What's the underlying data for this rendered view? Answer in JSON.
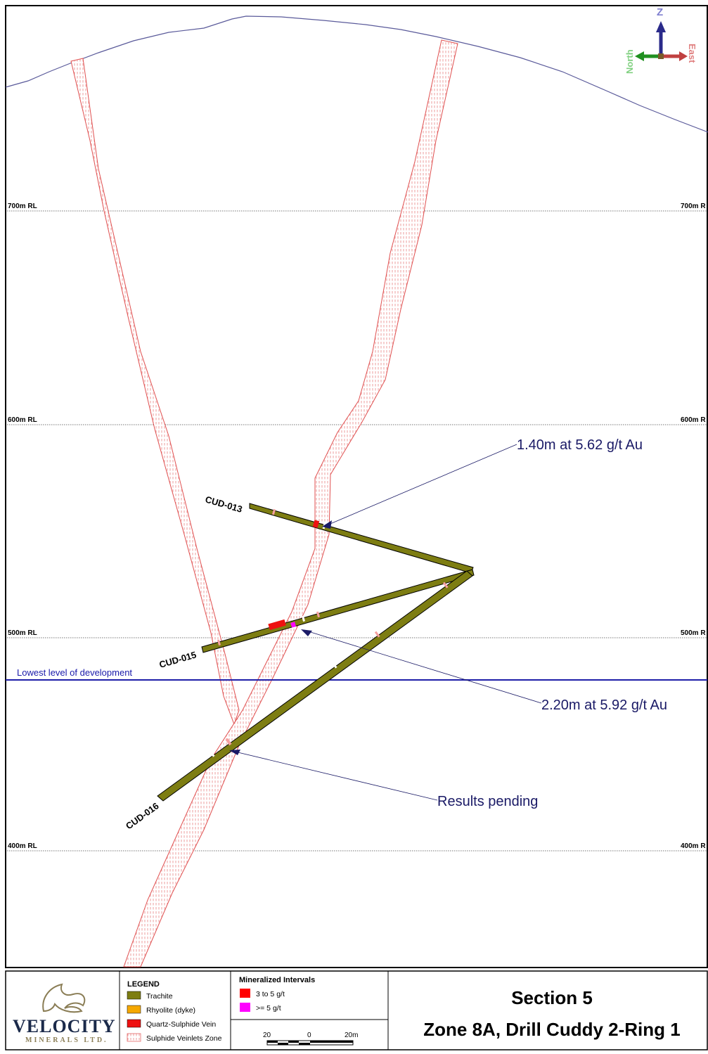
{
  "rl_levels": [
    {
      "left": "700m RL",
      "right": "700m R"
    },
    {
      "left": "600m RL",
      "right": "600m R"
    },
    {
      "left": "500m RL",
      "right": "500m R"
    },
    {
      "left": "400m RL",
      "right": "400m R"
    }
  ],
  "development_line_label": "Lowest level of development",
  "drill_holes": [
    {
      "id": "CUD-013"
    },
    {
      "id": "CUD-015"
    },
    {
      "id": "CUD-016"
    }
  ],
  "callouts": [
    {
      "text": "1.40m at 5.62 g/t Au"
    },
    {
      "text": "2.20m at 5.92 g/t Au"
    },
    {
      "text": "Results pending"
    }
  ],
  "orientation": {
    "up": "Z",
    "left": "North",
    "right": "East"
  },
  "legend": {
    "title": "LEGEND",
    "items": [
      {
        "label": "Trachite",
        "color": "#7d7d12"
      },
      {
        "label": "Rhyolite (dyke)",
        "color": "#f5a800"
      },
      {
        "label": "Quartz-Sulphide Vein",
        "color": "#ee1111"
      },
      {
        "label": "Sulphide Veinlets Zone",
        "color": "#f3b0b0"
      }
    ]
  },
  "mineralized": {
    "title": "Mineralized Intervals",
    "items": [
      {
        "label": "3 to 5 g/t",
        "color": "#ff0000"
      },
      {
        "label": ">= 5 g/t",
        "color": "#ff00ff"
      }
    ]
  },
  "scale_bar": {
    "labels": [
      "20",
      "0",
      "20m"
    ]
  },
  "logo": {
    "name": "VELOCITY",
    "sub": "MINERALS LTD."
  },
  "title_block": {
    "section": "Section 5",
    "zone": "Zone 8A, Drill Cuddy 2-Ring 1"
  }
}
